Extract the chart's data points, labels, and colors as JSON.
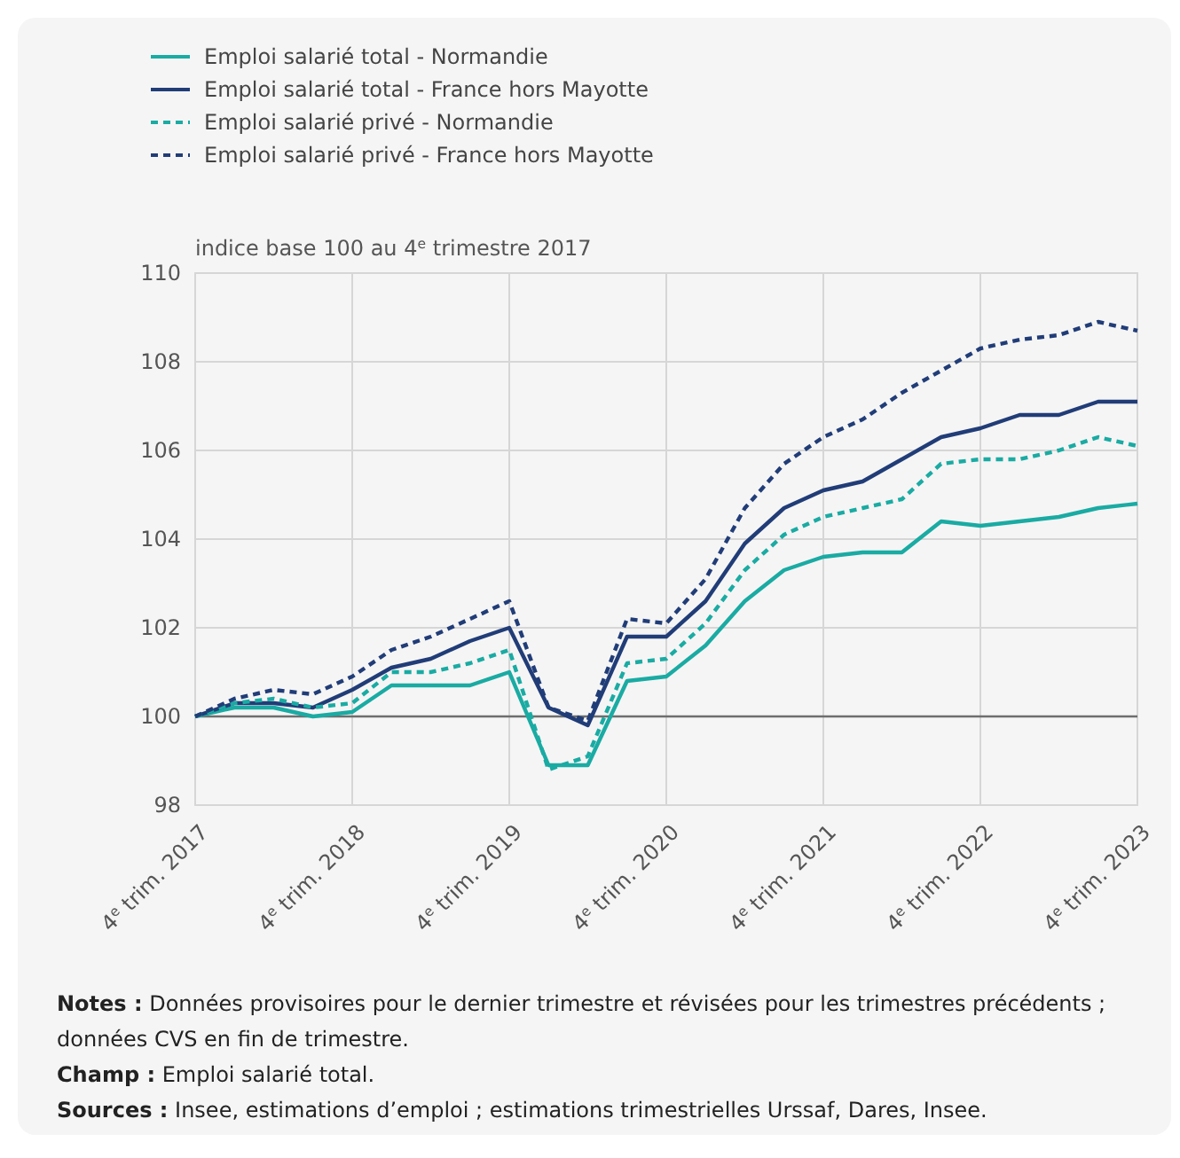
{
  "chart_data": {
    "type": "line",
    "ylabel": "indice base 100 au 4$^{e}$ trimestre 2017",
    "categories": [
      "4$^{e}$ trim. 2017",
      null,
      null,
      null,
      "4$^{e}$ trim. 2018",
      null,
      null,
      null,
      "4$^{e}$ trim. 2019",
      null,
      null,
      null,
      "4$^{e}$ trim. 2020",
      null,
      null,
      null,
      "4$^{e}$ trim. 2021",
      null,
      null,
      null,
      "4$^{e}$ trim. 2022",
      null,
      null,
      null,
      "4$^{e}$ trim. 2023"
    ],
    "ylim": [
      98,
      110
    ],
    "yticks": [
      98,
      100,
      102,
      104,
      106,
      108,
      110
    ],
    "grid": true,
    "legend": "top left",
    "ref_lines": [
      {
        "axis": "y",
        "value": 100,
        "color": "#6e6e6e"
      }
    ],
    "series": [
      {
        "name": "Emploi salarié total - Normandie",
        "color": "#1aaba3",
        "line_style": "solid",
        "values": [
          100,
          100.2,
          100.2,
          100.0,
          100.1,
          100.7,
          100.7,
          100.7,
          101.0,
          98.9,
          98.9,
          100.8,
          100.9,
          101.6,
          102.6,
          103.3,
          103.6,
          103.7,
          103.7,
          104.4,
          104.3,
          104.4,
          104.5,
          104.7,
          104.8
        ]
      },
      {
        "name": "Emploi salarié total - France hors Mayotte",
        "color": "#213d78",
        "line_style": "solid",
        "values": [
          100,
          100.3,
          100.3,
          100.2,
          100.6,
          101.1,
          101.3,
          101.7,
          102.0,
          100.2,
          99.8,
          101.8,
          101.8,
          102.6,
          103.9,
          104.7,
          105.1,
          105.3,
          105.8,
          106.3,
          106.5,
          106.8,
          106.8,
          107.1,
          107.1
        ]
      },
      {
        "name": "Emploi salarié privé - Normandie",
        "color": "#1aaba3",
        "line_style": "dashed",
        "values": [
          100,
          100.3,
          100.4,
          100.2,
          100.3,
          101.0,
          101.0,
          101.2,
          101.5,
          98.8,
          99.1,
          101.2,
          101.3,
          102.1,
          103.3,
          104.1,
          104.5,
          104.7,
          104.9,
          105.7,
          105.8,
          105.8,
          106.0,
          106.3,
          106.1
        ]
      },
      {
        "name": "Emploi salarié privé - France hors Mayotte",
        "color": "#213d78",
        "line_style": "dashed",
        "values": [
          100,
          100.4,
          100.6,
          100.5,
          100.9,
          101.5,
          101.8,
          102.2,
          102.6,
          100.2,
          99.9,
          102.2,
          102.1,
          103.1,
          104.7,
          105.7,
          106.3,
          106.7,
          107.3,
          107.8,
          108.3,
          108.5,
          108.6,
          108.9,
          108.7
        ]
      }
    ],
    "annotations": [
      "Notes : Données provisoires pour le dernier trimestre et révisées pour les trimestres précédents ; données CVS en fin de trimestre.",
      "Champ : Emploi salarié total.",
      "Sources : Insee, estimations d’emploi ; estimations trimestrielles Urssaf, Dares, Insee."
    ]
  }
}
